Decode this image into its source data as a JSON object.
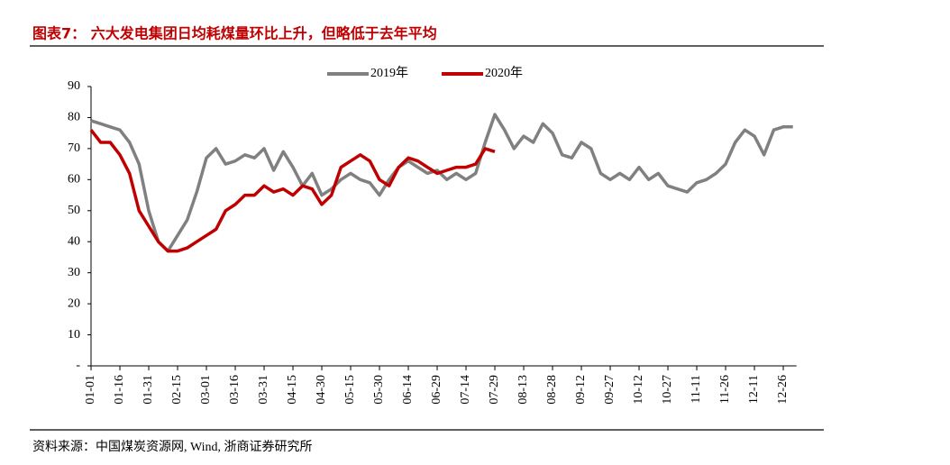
{
  "chart_data": {
    "type": "line",
    "title": "图表7： 六大发电集团日均耗煤量环比上升，但略低于去年平均",
    "source": "资料来源：中国煤炭资源网, Wind, 浙商证券研究所",
    "categories": [
      "01-01",
      null,
      null,
      "01-16",
      null,
      null,
      "01-31",
      null,
      null,
      "02-15",
      null,
      null,
      "03-01",
      null,
      null,
      "03-16",
      null,
      null,
      "03-31",
      null,
      null,
      "04-15",
      null,
      null,
      "04-30",
      null,
      null,
      "05-15",
      null,
      null,
      "05-30",
      null,
      null,
      "06-14",
      null,
      null,
      "06-29",
      null,
      null,
      "07-14",
      null,
      null,
      "07-29",
      null,
      null,
      "08-13",
      null,
      null,
      "08-28",
      null,
      null,
      "09-12",
      null,
      null,
      "09-27",
      null,
      null,
      "10-12",
      null,
      null,
      "10-27",
      null,
      null,
      "11-11",
      null,
      null,
      "11-26",
      null,
      null,
      "12-11",
      null,
      null,
      "12-26",
      null
    ],
    "series": [
      {
        "name": "2019年",
        "color": "#808080",
        "values": [
          79,
          78,
          77,
          76,
          72,
          65,
          50,
          40,
          37,
          42,
          47,
          56,
          67,
          70,
          65,
          66,
          68,
          67,
          70,
          63,
          69,
          64,
          58,
          62,
          55,
          57,
          60,
          62,
          60,
          59,
          55,
          60,
          64,
          66,
          64,
          62,
          63,
          60,
          62,
          60,
          62,
          72,
          81,
          76,
          70,
          74,
          72,
          78,
          75,
          68,
          67,
          72,
          70,
          62,
          60,
          62,
          60,
          64,
          60,
          62,
          58,
          57,
          56,
          59,
          60,
          62,
          65,
          72,
          76,
          74,
          68,
          76,
          77,
          77
        ]
      },
      {
        "name": "2020年",
        "color": "#c00000",
        "values": [
          76,
          72,
          72,
          68,
          62,
          50,
          45,
          40,
          37,
          37,
          38,
          40,
          42,
          44,
          50,
          52,
          55,
          55,
          58,
          56,
          57,
          55,
          58,
          57,
          52,
          55,
          64,
          66,
          68,
          66,
          60,
          58,
          64,
          67,
          66,
          64,
          62,
          63,
          64,
          64,
          65,
          70,
          69,
          null,
          null,
          null,
          null,
          null,
          null,
          null,
          null,
          null,
          null,
          null,
          null,
          null,
          null,
          null,
          null,
          null,
          null,
          null,
          null,
          null,
          null,
          null,
          null,
          null,
          null,
          null,
          null,
          null,
          null,
          null
        ]
      }
    ],
    "ylim": [
      0,
      90
    ],
    "yticks": [
      {
        "value": 0,
        "label": "-"
      },
      10,
      20,
      30,
      40,
      50,
      60,
      70,
      80,
      90
    ],
    "legend": "top"
  }
}
